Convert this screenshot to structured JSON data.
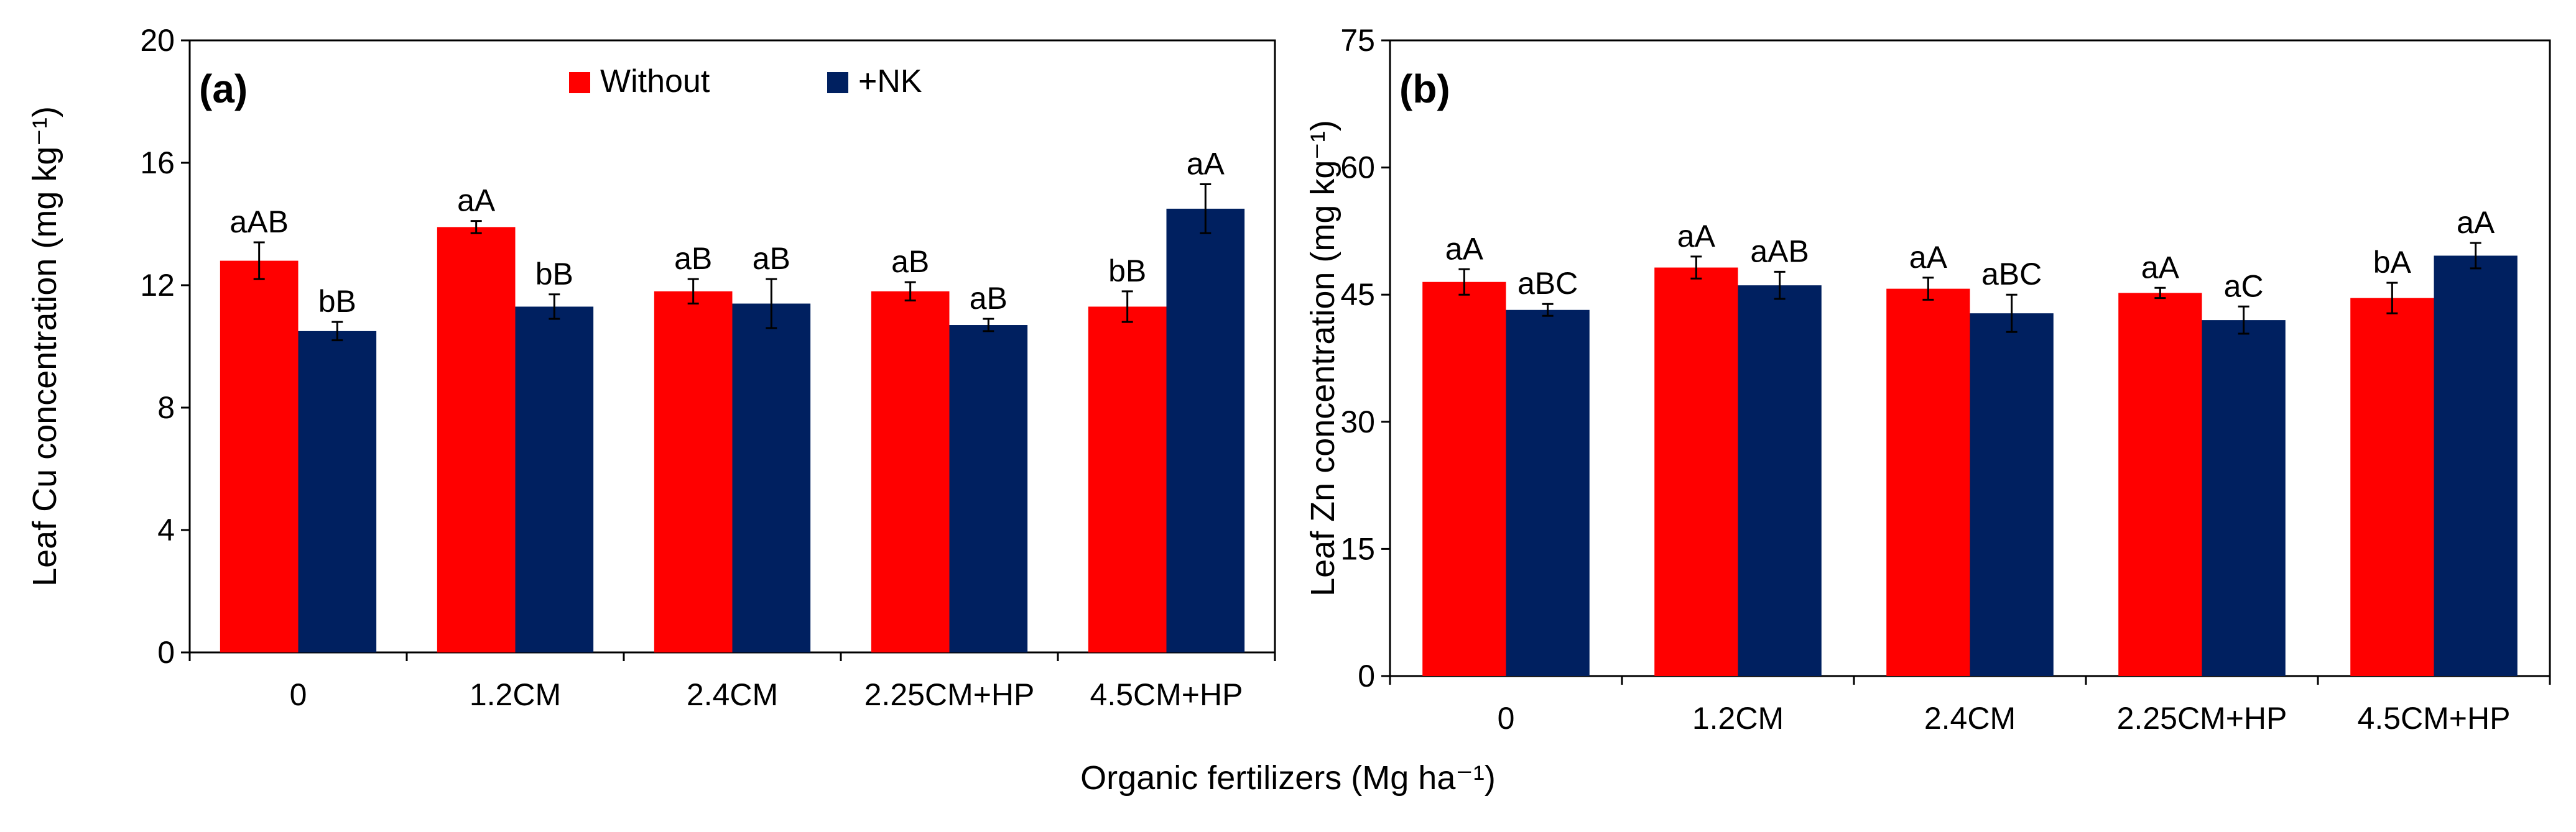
{
  "figure": {
    "shared_xlabel": "Organic fertilizers (Mg ha⁻¹)"
  },
  "legend": {
    "items": [
      {
        "name": "Without",
        "color": "#ff0000"
      },
      {
        "name": "+NK",
        "color": "#002060"
      }
    ],
    "placement": "top-center of panel (a)"
  },
  "chart_data": [
    {
      "type": "bar",
      "panel": "(a)",
      "title": "",
      "xlabel": "Organic fertilizers (Mg ha⁻¹)",
      "ylabel": "Leaf Cu concentration (mg kg⁻¹)",
      "categories": [
        "0",
        "1.2CM",
        "2.4CM",
        "2.25CM+HP",
        "4.5CM+HP"
      ],
      "ylim": [
        0,
        20
      ],
      "yticks": [
        0,
        4,
        8,
        12,
        16,
        20
      ],
      "series": [
        {
          "name": "Without",
          "color": "#ff0000",
          "values": [
            12.8,
            13.9,
            11.8,
            11.8,
            11.3
          ],
          "errors": [
            0.6,
            0.2,
            0.4,
            0.3,
            0.5
          ],
          "labels": [
            "aAB",
            "aA",
            "aB",
            "aB",
            "bB"
          ]
        },
        {
          "name": "+NK",
          "color": "#002060",
          "values": [
            10.5,
            11.3,
            11.4,
            10.7,
            14.5
          ],
          "errors": [
            0.3,
            0.4,
            0.8,
            0.2,
            0.8
          ],
          "labels": [
            "bB",
            "bB",
            "aB",
            "aB",
            "aA"
          ]
        }
      ]
    },
    {
      "type": "bar",
      "panel": "(b)",
      "title": "",
      "xlabel": "Organic fertilizers (Mg ha⁻¹)",
      "ylabel": "Leaf Zn concentration (mg kg⁻¹)",
      "categories": [
        "0",
        "1.2CM",
        "2.4CM",
        "2.25CM+HP",
        "4.5CM+HP"
      ],
      "ylim": [
        0,
        75
      ],
      "yticks": [
        0,
        15,
        30,
        45,
        60,
        75
      ],
      "series": [
        {
          "name": "Without",
          "color": "#ff0000",
          "values": [
            46.5,
            48.2,
            45.7,
            45.2,
            44.6
          ],
          "errors": [
            1.5,
            1.3,
            1.3,
            0.6,
            1.8
          ],
          "labels": [
            "aA",
            "aA",
            "aA",
            "aA",
            "bA"
          ]
        },
        {
          "name": "+NK",
          "color": "#002060",
          "values": [
            43.2,
            46.1,
            42.8,
            42.0,
            49.6
          ],
          "errors": [
            0.7,
            1.6,
            2.2,
            1.6,
            1.5
          ],
          "labels": [
            "aBC",
            "aAB",
            "aBC",
            "aC",
            "aA"
          ]
        }
      ]
    }
  ]
}
